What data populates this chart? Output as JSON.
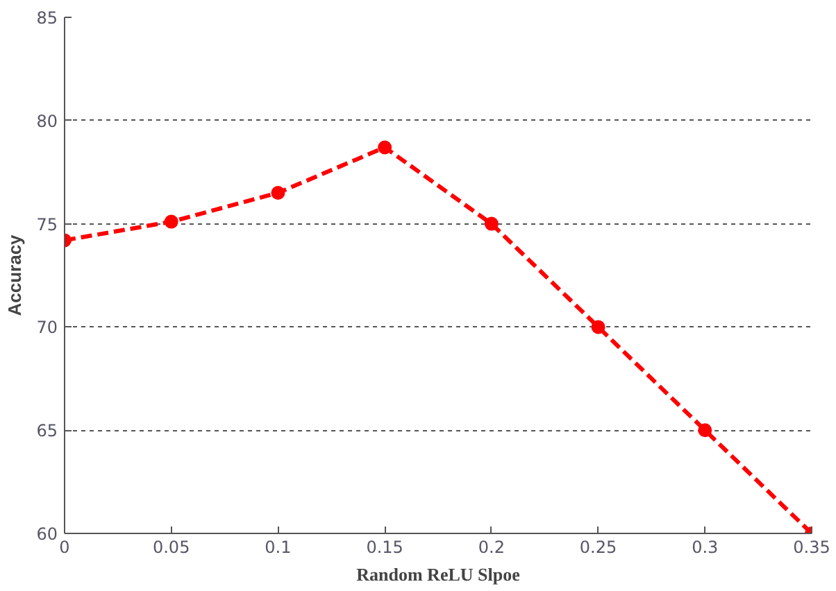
{
  "chart_data": {
    "type": "line",
    "xlabel": "Random ReLU Slpoe",
    "ylabel": "Accuracy",
    "x": [
      0,
      0.05,
      0.1,
      0.15,
      0.2,
      0.25,
      0.3,
      0.35
    ],
    "series": [
      {
        "color": "#ff0000",
        "values": [
          74.2,
          75.1,
          76.5,
          78.7,
          75.0,
          70.0,
          65.0,
          60.0
        ]
      }
    ],
    "xlim": [
      0,
      0.35
    ],
    "ylim": [
      60,
      85
    ],
    "xticks": [
      0,
      0.05,
      0.1,
      0.15,
      0.2,
      0.25,
      0.3,
      0.35
    ],
    "yticks": [
      60,
      65,
      70,
      75,
      80,
      85
    ],
    "grid": "y",
    "marker": "circle",
    "line_style": "dashed"
  }
}
